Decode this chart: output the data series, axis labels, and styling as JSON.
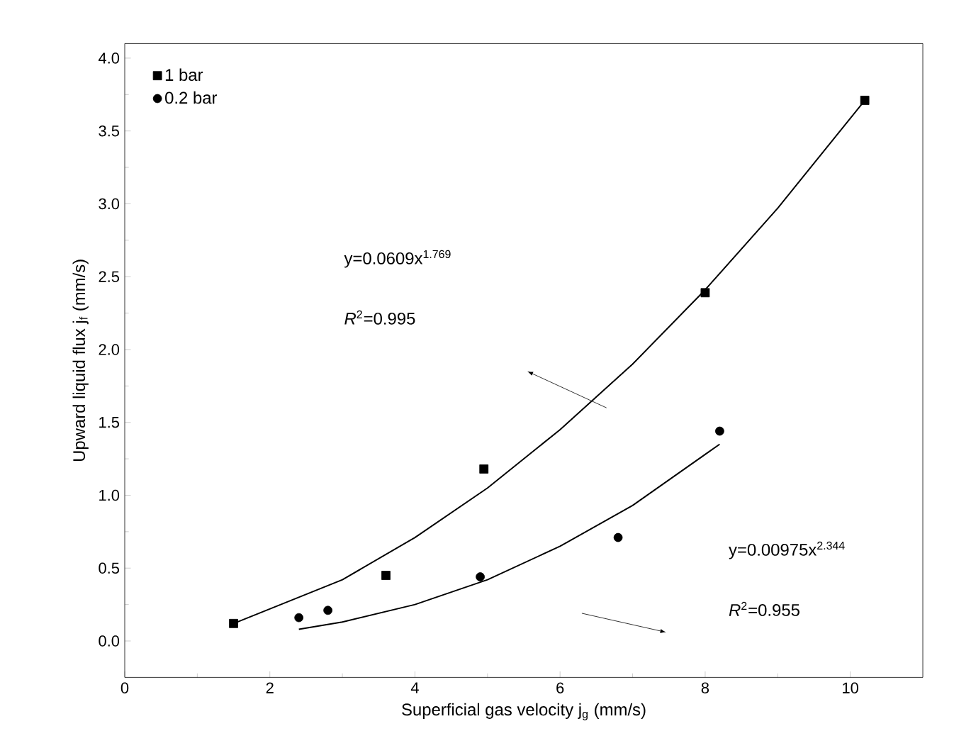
{
  "chart_data": {
    "type": "scatter",
    "xlabel": "Superficial gas velocity j$_{g}$ (mm/s)",
    "ylabel": "Upward liquid flux j$_{f}$ (mm/s)",
    "xlim": [
      0,
      11
    ],
    "ylim": [
      -0.25,
      4.1
    ],
    "xticks": [
      0,
      2,
      4,
      6,
      8,
      10
    ],
    "yticks": [
      {
        "value": 0,
        "label": "0.0"
      },
      {
        "value": 0.5,
        "label": "0.5"
      },
      {
        "value": 1,
        "label": "1.0"
      },
      {
        "value": 1.5,
        "label": "1.5"
      },
      {
        "value": 2,
        "label": "2.0"
      },
      {
        "value": 2.5,
        "label": "2.5"
      },
      {
        "value": 3,
        "label": "3.0"
      },
      {
        "value": 3.5,
        "label": "3.5"
      },
      {
        "value": 4,
        "label": "4.0"
      }
    ],
    "legend": "top left",
    "grid": false,
    "series": [
      {
        "name": "1 bar",
        "marker": "square",
        "color": "#000000",
        "x": [
          1.5,
          3.6,
          4.95,
          8.0,
          10.2
        ],
        "values": [
          0.12,
          0.45,
          1.18,
          2.39,
          3.71
        ]
      },
      {
        "name": "0.2 bar",
        "marker": "circle",
        "color": "#000000",
        "x": [
          2.4,
          2.8,
          4.9,
          6.8,
          8.2
        ],
        "values": [
          0.16,
          0.21,
          0.44,
          0.71,
          1.44
        ]
      },
      {
        "type": "line",
        "marker": "none",
        "color": "#000000",
        "x": [
          1.5,
          3,
          4,
          5,
          6,
          7,
          8,
          9,
          10.2
        ],
        "values": [
          0.12,
          0.42,
          0.71,
          1.05,
          1.45,
          1.9,
          2.41,
          2.97,
          3.71
        ]
      },
      {
        "type": "line",
        "marker": "none",
        "color": "#000000",
        "x": [
          2.4,
          3,
          4,
          5,
          6,
          7,
          8,
          8.2
        ],
        "values": [
          0.08,
          0.13,
          0.25,
          0.42,
          0.65,
          0.93,
          1.28,
          1.35
        ]
      }
    ],
    "annotations": [
      "y=0.0609x$^{1.769}$",
      "*R*$^{2}$=0.995",
      "y=0.00975x$^{2.344}$",
      "*R*$^{2}$=0.955"
    ]
  }
}
